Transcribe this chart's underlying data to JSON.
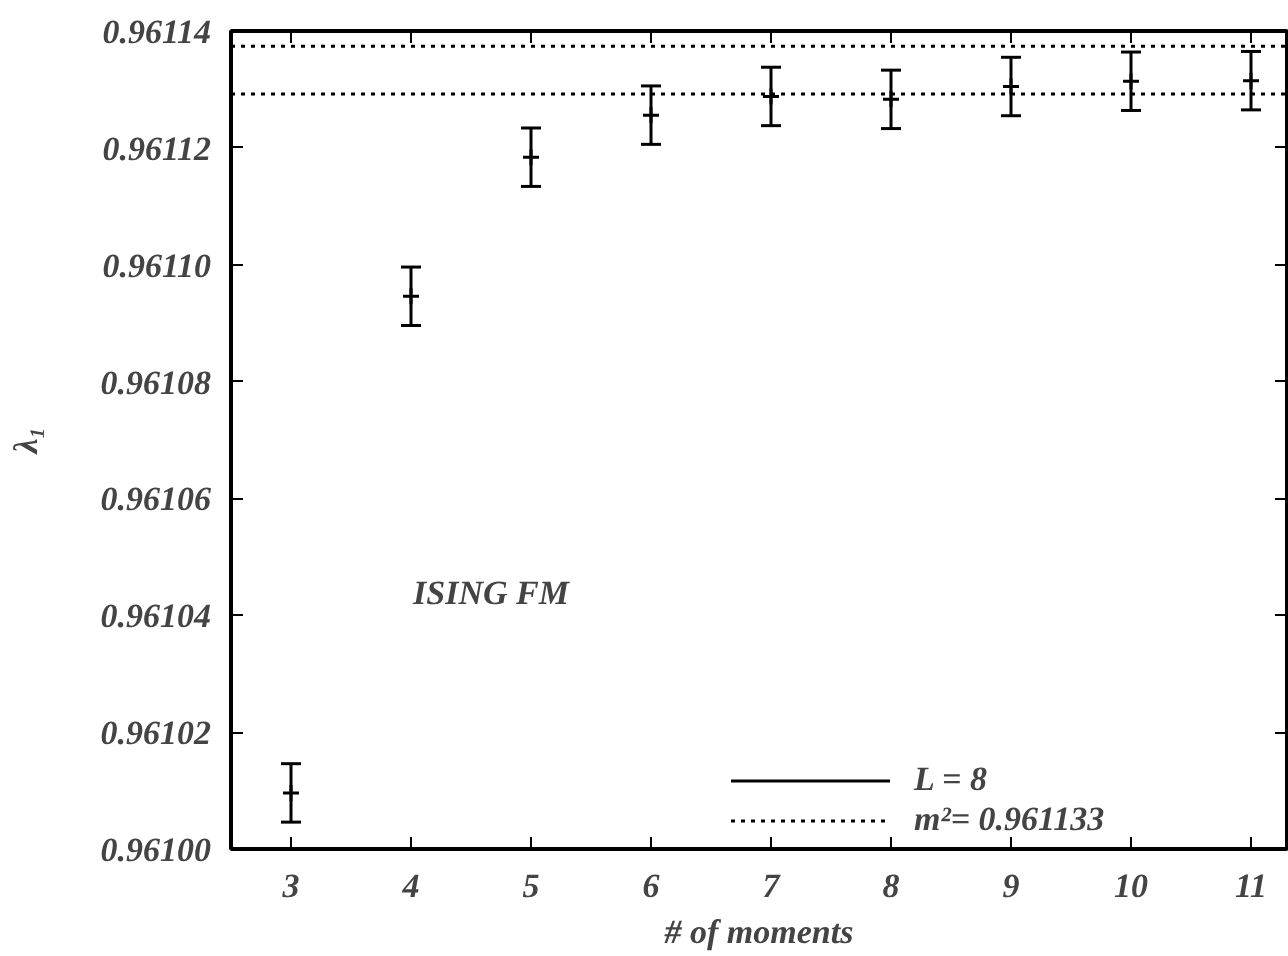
{
  "chart_data": {
    "type": "scatter",
    "xlabel": "# of moments",
    "ylabel": "λ₁",
    "annotations": [
      "ISING FM",
      "m²= 0.961133"
    ],
    "x": [
      3,
      4,
      5,
      6,
      7,
      8,
      9,
      10,
      11
    ],
    "series": [
      {
        "name": "L = 8",
        "color": "#000000",
        "values": [
          0.9610096,
          0.9610946,
          0.9611184,
          0.9611256,
          0.9611288,
          0.9611283,
          0.9611305,
          0.9611314,
          0.9611315
        ],
        "errors": [
          5e-06,
          5e-06,
          5e-06,
          5e-06,
          5e-06,
          5e-06,
          5e-06,
          5e-06,
          5e-06
        ]
      }
    ],
    "ref_lines": [
      {
        "axis": "y",
        "value": 0.9611374,
        "color": "#000000",
        "line_style": "dotted"
      },
      {
        "axis": "y",
        "value": 0.9611292,
        "color": "#000000",
        "line_style": "dotted"
      }
    ],
    "xlim": [
      2.5,
      11.3
    ],
    "xticks": [
      3,
      4,
      5,
      6,
      7,
      8,
      9,
      10,
      11
    ],
    "ylim": [
      0.961,
      0.96114
    ],
    "yticks": [
      {
        "value": 0.961,
        "label": "0.96100"
      },
      {
        "value": 0.96102,
        "label": "0.96102"
      },
      {
        "value": 0.96104,
        "label": "0.96104"
      },
      {
        "value": 0.96106,
        "label": "0.96106"
      },
      {
        "value": 0.96108,
        "label": "0.96108"
      },
      {
        "value": 0.9611,
        "label": "0.96110"
      },
      {
        "value": 0.96112,
        "label": "0.96112"
      },
      {
        "value": 0.96114,
        "label": "0.96114"
      }
    ],
    "marker": "cross",
    "grid": false,
    "legend": "bottom right"
  }
}
